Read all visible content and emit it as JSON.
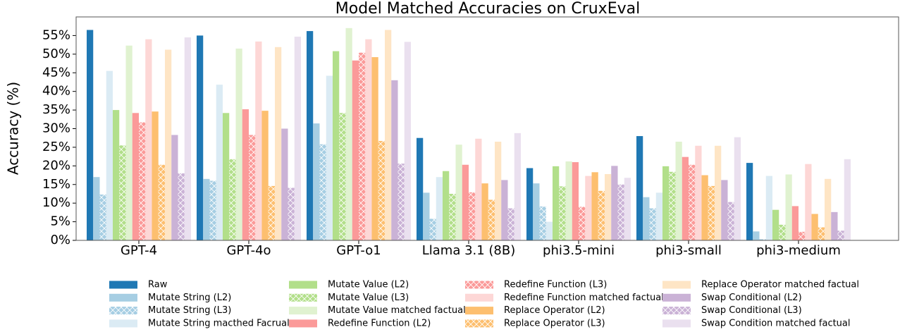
{
  "chart_data": {
    "type": "bar",
    "title": "Model Matched Accuracies on CruxEval",
    "y_label": "Accuracy (%)",
    "categories": [
      "GPT-4",
      "GPT-4o",
      "GPT-o1",
      "Llama 3.1 (8B)",
      "phi3.5-mini",
      "phi3-small",
      "phi3-medium"
    ],
    "ylim": [
      0,
      60
    ],
    "yticks": [
      {
        "value": 0,
        "label": "0%"
      },
      {
        "value": 5,
        "label": "5%"
      },
      {
        "value": 10,
        "label": "10%"
      },
      {
        "value": 15,
        "label": "15%"
      },
      {
        "value": 20,
        "label": "20%"
      },
      {
        "value": 25,
        "label": "25%"
      },
      {
        "value": 30,
        "label": "30%"
      },
      {
        "value": 35,
        "label": "35%"
      },
      {
        "value": 40,
        "label": "40%"
      },
      {
        "value": 45,
        "label": "45%"
      },
      {
        "value": 50,
        "label": "50%"
      },
      {
        "value": 55,
        "label": "55%"
      }
    ],
    "legend": "bottom",
    "series": [
      {
        "name": "Raw",
        "color": "#1f78b4",
        "style": "solid",
        "values": [
          56.5,
          55,
          56.2,
          27.5,
          19.4,
          28,
          20.8
        ]
      },
      {
        "name": "Mutate String (L2)",
        "color": "#a6cee3",
        "style": "solid",
        "values": [
          17,
          16.5,
          31.4,
          12.8,
          15.3,
          11.6,
          2.4
        ]
      },
      {
        "name": "Mutate String (L3)",
        "color": "#a6cee3",
        "style": "hatched",
        "values": [
          12.3,
          16,
          25.8,
          5.8,
          9.1,
          8.6,
          0.3
        ]
      },
      {
        "name": "Mutate String macthed Facrual",
        "color": "#a6cee3",
        "style": "faded",
        "values": [
          45.5,
          41.8,
          44.2,
          17,
          5,
          12.8,
          17.3
        ]
      },
      {
        "name": "Mutate Value (L2)",
        "color": "#b2df8a",
        "style": "solid",
        "values": [
          35,
          34.2,
          50.8,
          18.6,
          19.9,
          19.9,
          8.2
        ]
      },
      {
        "name": "Mutate Value (L3)",
        "color": "#b2df8a",
        "style": "hatched",
        "values": [
          25.5,
          21.8,
          34.2,
          12.5,
          14.5,
          18.4,
          4.2
        ]
      },
      {
        "name": "Mutate Value matched factual",
        "color": "#b2df8a",
        "style": "faded",
        "values": [
          52.3,
          51.5,
          57,
          25.7,
          21.2,
          26.5,
          17.7
        ]
      },
      {
        "name": "Redefine Function (L2)",
        "color": "#fb9a99",
        "style": "solid",
        "values": [
          34.2,
          35.2,
          48.3,
          20.3,
          21,
          22.4,
          9.2
        ]
      },
      {
        "name": "Redefine Function (L3)",
        "color": "#fb9a99",
        "style": "hatched",
        "values": [
          31.7,
          28.3,
          50.4,
          12.9,
          9,
          20.3,
          2.3
        ]
      },
      {
        "name": "Redefine Function matched factual",
        "color": "#fb9a99",
        "style": "faded",
        "values": [
          54,
          53.4,
          54,
          27.3,
          17.3,
          25.4,
          20.5
        ]
      },
      {
        "name": "Replace Operator (L2)",
        "color": "#fdbf6f",
        "style": "solid",
        "values": [
          34.6,
          34.8,
          49.2,
          15.3,
          18.3,
          17.5,
          7.1
        ]
      },
      {
        "name": "Replace Operator (L3)",
        "color": "#fdbf6f",
        "style": "hatched",
        "values": [
          20.3,
          14.6,
          26.7,
          10.9,
          13.3,
          14.6,
          3.5
        ]
      },
      {
        "name": "Replace Operator matched factual",
        "color": "#fdbf6f",
        "style": "faded",
        "values": [
          51.2,
          51.9,
          56.5,
          26.5,
          17.8,
          25.4,
          16.5
        ]
      },
      {
        "name": "Swap Conditional (L2)",
        "color": "#cab2d6",
        "style": "solid",
        "values": [
          28.3,
          30,
          43,
          16.2,
          20,
          16.2,
          7.6
        ]
      },
      {
        "name": "Swap Conditional (L3)",
        "color": "#cab2d6",
        "style": "hatched",
        "values": [
          18,
          14.1,
          20.6,
          8.6,
          15,
          10.3,
          2.6
        ]
      },
      {
        "name": "Swap Condition matched factual",
        "color": "#cab2d6",
        "style": "faded",
        "values": [
          54.5,
          54.7,
          53.3,
          28.8,
          16.8,
          27.7,
          21.8
        ]
      }
    ]
  }
}
